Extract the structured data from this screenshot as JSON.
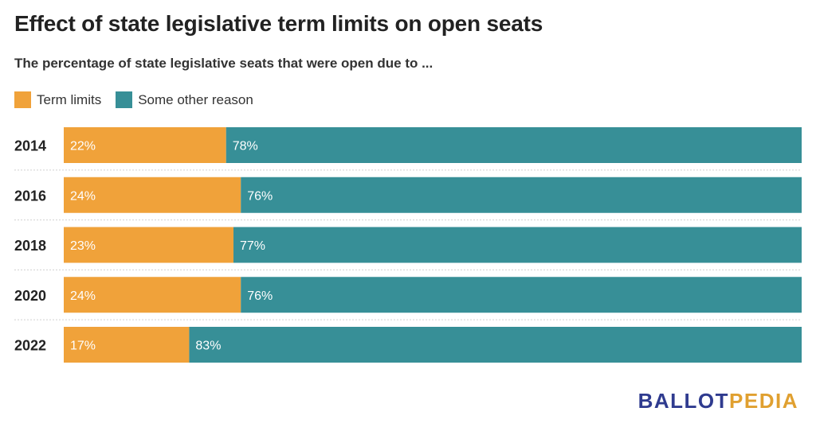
{
  "title": "Effect of state legislative term limits on open seats",
  "subtitle": "The percentage of state legislative seats that were open due to ...",
  "legend": {
    "items": [
      {
        "label": "Term limits",
        "color": "#F0A23A"
      },
      {
        "label": "Some other reason",
        "color": "#378F97"
      }
    ]
  },
  "logo": {
    "part1": "BALLOT",
    "part2": "PEDIA"
  },
  "chart_data": {
    "type": "bar",
    "orientation": "horizontal",
    "stacked": true,
    "normalized_percent": true,
    "categories": [
      "2014",
      "2016",
      "2018",
      "2020",
      "2022"
    ],
    "series": [
      {
        "name": "Term limits",
        "color": "#F0A23A",
        "values": [
          22,
          24,
          23,
          24,
          17
        ],
        "labels": [
          "22%",
          "24%",
          "23%",
          "24%",
          "17%"
        ]
      },
      {
        "name": "Some other reason",
        "color": "#378F97",
        "values": [
          78,
          76,
          77,
          76,
          83
        ],
        "labels": [
          "78%",
          "76%",
          "77%",
          "76%",
          "83%"
        ]
      }
    ],
    "xlim": [
      0,
      100
    ],
    "grid": false,
    "legend_position": "top-left"
  }
}
